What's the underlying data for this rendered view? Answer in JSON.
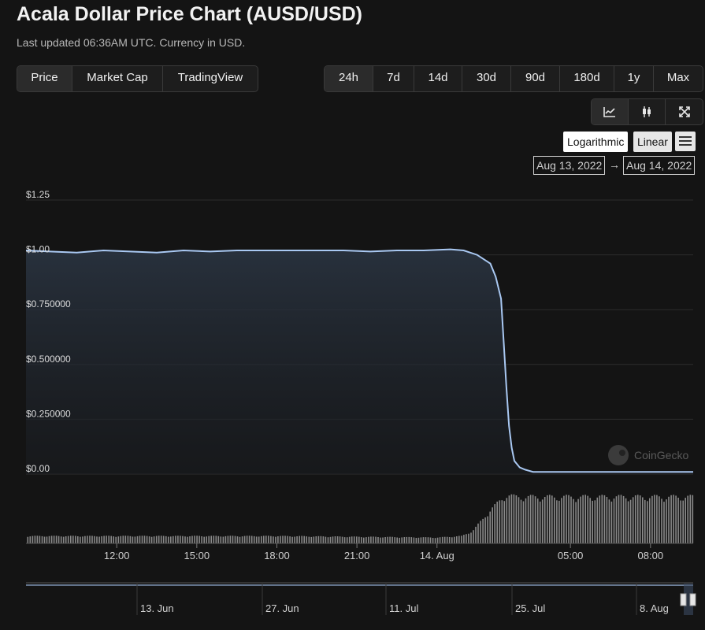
{
  "header": {
    "title": "Acala Dollar Price Chart (AUSD/USD)",
    "subtitle": "Last updated 06:36AM UTC. Currency in USD."
  },
  "view_tabs": [
    {
      "label": "Price",
      "active": true
    },
    {
      "label": "Market Cap",
      "active": false
    },
    {
      "label": "TradingView",
      "active": false
    }
  ],
  "range_tabs": [
    {
      "label": "24h",
      "active": true
    },
    {
      "label": "7d",
      "active": false
    },
    {
      "label": "14d",
      "active": false
    },
    {
      "label": "30d",
      "active": false
    },
    {
      "label": "90d",
      "active": false
    },
    {
      "label": "180d",
      "active": false
    },
    {
      "label": "1y",
      "active": false
    },
    {
      "label": "Max",
      "active": false
    }
  ],
  "tools": [
    {
      "icon": "line-chart-icon",
      "active": true
    },
    {
      "icon": "candlestick-icon",
      "active": false
    },
    {
      "icon": "fullscreen-icon",
      "active": false
    }
  ],
  "scale": {
    "log_label": "Logarithmic",
    "linear_label": "Linear",
    "selected": "Linear"
  },
  "date_range": {
    "from": "Aug 13, 2022",
    "arrow": "→",
    "to": "Aug 14, 2022"
  },
  "watermark": "CoinGecko",
  "colors": {
    "line": "#a9c8f2",
    "background": "#141414",
    "grid": "#2c2c2c",
    "volume": "#8a8a8a"
  },
  "chart_data": {
    "type": "line",
    "ylim": [
      0,
      1.25
    ],
    "y_ticks": [
      {
        "value": 1.25,
        "label": "$1.25"
      },
      {
        "value": 1.0,
        "label": "$1.00"
      },
      {
        "value": 0.75,
        "label": "$0.750000"
      },
      {
        "value": 0.5,
        "label": "$0.500000"
      },
      {
        "value": 0.25,
        "label": "$0.250000"
      },
      {
        "value": 0.0,
        "label": "$0.00"
      }
    ],
    "x_ticks": [
      "12:00",
      "15:00",
      "18:00",
      "21:00",
      "14. Aug",
      "05:00",
      "08:00"
    ],
    "x_tick_hours": [
      12,
      15,
      18,
      21,
      24,
      29,
      32
    ],
    "xlim_hours": [
      8.6,
      33.6
    ],
    "series": [
      {
        "x_hours": [
          8.6,
          9.5,
          10.5,
          11.5,
          12.5,
          13.5,
          14.5,
          15.5,
          16.5,
          17.5,
          18.5,
          19.5,
          20.5,
          21.5,
          22.5,
          23.5,
          24.5,
          25.0,
          25.5,
          26.0,
          26.2,
          26.4,
          26.5,
          26.6,
          26.7,
          26.8,
          26.9,
          27.1,
          27.3,
          27.6,
          28.0,
          29.0,
          30.0,
          31.0,
          32.0,
          33.6
        ],
        "values": [
          1.02,
          1.015,
          1.01,
          1.02,
          1.015,
          1.01,
          1.02,
          1.015,
          1.02,
          1.02,
          1.02,
          1.02,
          1.02,
          1.015,
          1.02,
          1.02,
          1.025,
          1.02,
          1.0,
          0.96,
          0.9,
          0.8,
          0.6,
          0.4,
          0.22,
          0.12,
          0.06,
          0.03,
          0.02,
          0.01,
          0.01,
          0.01,
          0.01,
          0.01,
          0.01,
          0.01
        ]
      }
    ],
    "volume": {
      "x_hours": [
        8.6,
        12.0,
        18.0,
        24.0,
        24.9,
        25.3,
        25.7,
        26.0,
        26.3,
        26.6,
        26.9,
        27.3,
        28.0,
        33.6
      ],
      "levels": [
        0.15,
        0.15,
        0.15,
        0.12,
        0.15,
        0.25,
        0.5,
        0.7,
        0.85,
        1.0,
        0.95,
        0.95,
        0.95,
        0.95
      ]
    },
    "navigator": {
      "ticks": [
        "13. Jun",
        "27. Jun",
        "11. Jul",
        "25. Jul",
        "8. Aug"
      ],
      "values": [
        1.0,
        1.0,
        1.0,
        1.0,
        1.0,
        0.99
      ]
    }
  }
}
